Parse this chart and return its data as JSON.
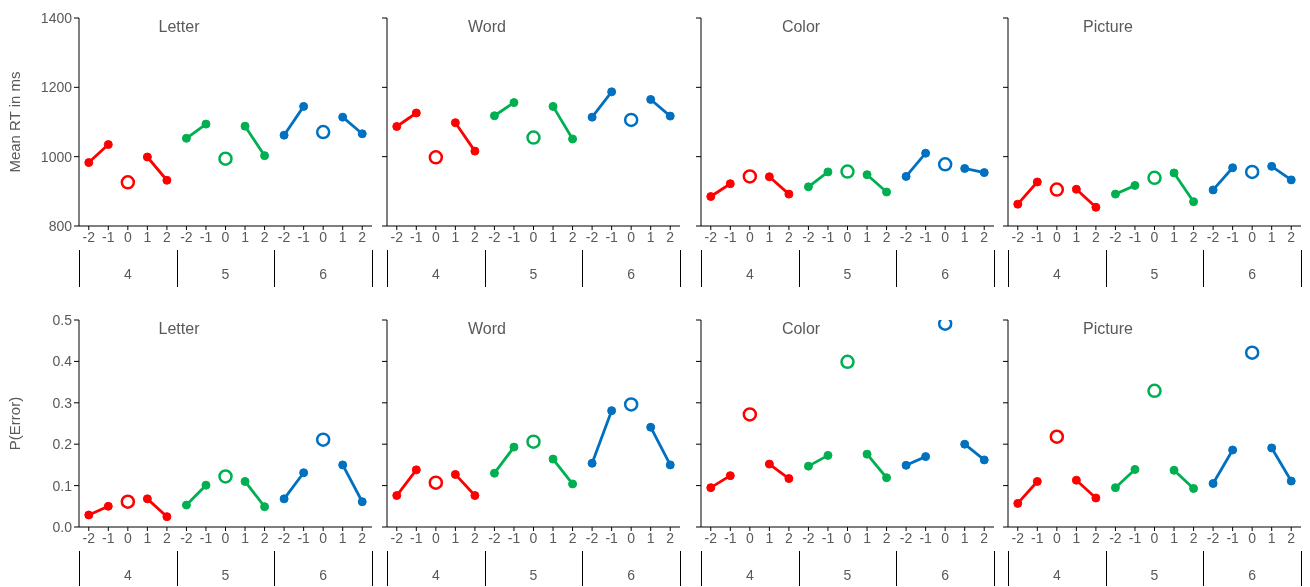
{
  "chart_data": [
    {
      "type": "line",
      "title": "Letter",
      "ylabel": "Mean RT in ms",
      "categories": [
        "-2",
        "-1",
        "0",
        "1",
        "2",
        "-2",
        "-1",
        "0",
        "1",
        "2",
        "-2",
        "-1",
        "0",
        "1",
        "2"
      ],
      "annotations": [
        "4",
        "5",
        "6"
      ],
      "ylim": [
        800,
        1400
      ],
      "yticks": [
        800,
        1000,
        1200,
        1400
      ],
      "marker": "circle",
      "series": [
        {
          "type": "line",
          "color": "#ff0000",
          "values": [
            983,
            1035,
            null,
            null,
            null,
            null,
            null,
            null,
            null,
            null,
            null,
            null,
            null,
            null,
            null
          ]
        },
        {
          "type": "scatter",
          "color": "#ff0000",
          "values": [
            null,
            null,
            926,
            null,
            null,
            null,
            null,
            null,
            null,
            null,
            null,
            null,
            null,
            null,
            null
          ]
        },
        {
          "type": "line",
          "color": "#ff0000",
          "values": [
            null,
            null,
            null,
            999,
            932,
            null,
            null,
            null,
            null,
            null,
            null,
            null,
            null,
            null,
            null
          ]
        },
        {
          "type": "line",
          "color": "#00b050",
          "values": [
            null,
            null,
            null,
            null,
            null,
            1053,
            1094,
            null,
            null,
            null,
            null,
            null,
            null,
            null,
            null
          ]
        },
        {
          "type": "scatter",
          "color": "#00b050",
          "values": [
            null,
            null,
            null,
            null,
            null,
            null,
            null,
            994,
            null,
            null,
            null,
            null,
            null,
            null,
            null
          ]
        },
        {
          "type": "line",
          "color": "#00b050",
          "values": [
            null,
            null,
            null,
            null,
            null,
            null,
            null,
            null,
            1088,
            1003,
            null,
            null,
            null,
            null,
            null
          ]
        },
        {
          "type": "line",
          "color": "#0070c0",
          "values": [
            null,
            null,
            null,
            null,
            null,
            null,
            null,
            null,
            null,
            null,
            1062,
            1145,
            null,
            null,
            null
          ]
        },
        {
          "type": "scatter",
          "color": "#0070c0",
          "values": [
            null,
            null,
            null,
            null,
            null,
            null,
            null,
            null,
            null,
            null,
            null,
            null,
            1071,
            null,
            null
          ]
        },
        {
          "type": "line",
          "color": "#0070c0",
          "values": [
            null,
            null,
            null,
            null,
            null,
            null,
            null,
            null,
            null,
            null,
            null,
            null,
            null,
            1114,
            1066
          ]
        }
      ]
    },
    {
      "type": "line",
      "title": "Word",
      "categories": [
        "-2",
        "-1",
        "0",
        "1",
        "2",
        "-2",
        "-1",
        "0",
        "1",
        "2",
        "-2",
        "-1",
        "0",
        "1",
        "2"
      ],
      "annotations": [
        "4",
        "5",
        "6"
      ],
      "ylim": [
        800,
        1400
      ],
      "yticks": [
        800,
        1000,
        1200,
        1400
      ],
      "marker": "circle",
      "tick_labels": "x",
      "series": [
        {
          "type": "line",
          "color": "#ff0000",
          "values": [
            1087,
            1126,
            null,
            null,
            null,
            null,
            null,
            null,
            null,
            null,
            null,
            null,
            null,
            null,
            null
          ]
        },
        {
          "type": "scatter",
          "color": "#ff0000",
          "values": [
            null,
            null,
            998,
            null,
            null,
            null,
            null,
            null,
            null,
            null,
            null,
            null,
            null,
            null,
            null
          ]
        },
        {
          "type": "line",
          "color": "#ff0000",
          "values": [
            null,
            null,
            null,
            1098,
            1016,
            null,
            null,
            null,
            null,
            null,
            null,
            null,
            null,
            null,
            null
          ]
        },
        {
          "type": "line",
          "color": "#00b050",
          "values": [
            null,
            null,
            null,
            null,
            null,
            1118,
            1156,
            null,
            null,
            null,
            null,
            null,
            null,
            null,
            null
          ]
        },
        {
          "type": "scatter",
          "color": "#00b050",
          "values": [
            null,
            null,
            null,
            null,
            null,
            null,
            null,
            1055,
            null,
            null,
            null,
            null,
            null,
            null,
            null
          ]
        },
        {
          "type": "line",
          "color": "#00b050",
          "values": [
            null,
            null,
            null,
            null,
            null,
            null,
            null,
            null,
            1145,
            1051,
            null,
            null,
            null,
            null,
            null
          ]
        },
        {
          "type": "line",
          "color": "#0070c0",
          "values": [
            null,
            null,
            null,
            null,
            null,
            null,
            null,
            null,
            null,
            null,
            1114,
            1187,
            null,
            null,
            null
          ]
        },
        {
          "type": "scatter",
          "color": "#0070c0",
          "values": [
            null,
            null,
            null,
            null,
            null,
            null,
            null,
            null,
            null,
            null,
            null,
            null,
            1106,
            null,
            null
          ]
        },
        {
          "type": "line",
          "color": "#0070c0",
          "values": [
            null,
            null,
            null,
            null,
            null,
            null,
            null,
            null,
            null,
            null,
            null,
            null,
            null,
            1165,
            1117
          ]
        }
      ]
    },
    {
      "type": "line",
      "title": "Color",
      "categories": [
        "-2",
        "-1",
        "0",
        "1",
        "2",
        "-2",
        "-1",
        "0",
        "1",
        "2",
        "-2",
        "-1",
        "0",
        "1",
        "2"
      ],
      "annotations": [
        "4",
        "5",
        "6"
      ],
      "ylim": [
        800,
        1400
      ],
      "yticks": [
        800,
        1000,
        1200,
        1400
      ],
      "marker": "circle",
      "tick_labels": "x",
      "series": [
        {
          "type": "line",
          "color": "#ff0000",
          "values": [
            885,
            922,
            null,
            null,
            null,
            null,
            null,
            null,
            null,
            null,
            null,
            null,
            null,
            null,
            null
          ]
        },
        {
          "type": "scatter",
          "color": "#ff0000",
          "values": [
            null,
            null,
            943,
            null,
            null,
            null,
            null,
            null,
            null,
            null,
            null,
            null,
            null,
            null,
            null
          ]
        },
        {
          "type": "line",
          "color": "#ff0000",
          "values": [
            null,
            null,
            null,
            942,
            892,
            null,
            null,
            null,
            null,
            null,
            null,
            null,
            null,
            null,
            null
          ]
        },
        {
          "type": "line",
          "color": "#00b050",
          "values": [
            null,
            null,
            null,
            null,
            null,
            913,
            956,
            null,
            null,
            null,
            null,
            null,
            null,
            null,
            null
          ]
        },
        {
          "type": "scatter",
          "color": "#00b050",
          "values": [
            null,
            null,
            null,
            null,
            null,
            null,
            null,
            957,
            null,
            null,
            null,
            null,
            null,
            null,
            null
          ]
        },
        {
          "type": "line",
          "color": "#00b050",
          "values": [
            null,
            null,
            null,
            null,
            null,
            null,
            null,
            null,
            948,
            898,
            null,
            null,
            null,
            null,
            null
          ]
        },
        {
          "type": "line",
          "color": "#0070c0",
          "values": [
            null,
            null,
            null,
            null,
            null,
            null,
            null,
            null,
            null,
            null,
            943,
            1010,
            null,
            null,
            null
          ]
        },
        {
          "type": "scatter",
          "color": "#0070c0",
          "values": [
            null,
            null,
            null,
            null,
            null,
            null,
            null,
            null,
            null,
            null,
            null,
            null,
            978,
            null,
            null
          ]
        },
        {
          "type": "line",
          "color": "#0070c0",
          "values": [
            null,
            null,
            null,
            null,
            null,
            null,
            null,
            null,
            null,
            null,
            null,
            null,
            null,
            966,
            954
          ]
        }
      ]
    },
    {
      "type": "line",
      "title": "Picture",
      "categories": [
        "-2",
        "-1",
        "0",
        "1",
        "2",
        "-2",
        "-1",
        "0",
        "1",
        "2",
        "-2",
        "-1",
        "0",
        "1",
        "2"
      ],
      "annotations": [
        "4",
        "5",
        "6"
      ],
      "ylim": [
        800,
        1400
      ],
      "yticks": [
        800,
        1000,
        1200,
        1400
      ],
      "marker": "circle",
      "tick_labels": "x",
      "series": [
        {
          "type": "line",
          "color": "#ff0000",
          "values": [
            863,
            927,
            null,
            null,
            null,
            null,
            null,
            null,
            null,
            null,
            null,
            null,
            null,
            null,
            null
          ]
        },
        {
          "type": "scatter",
          "color": "#ff0000",
          "values": [
            null,
            null,
            905,
            null,
            null,
            null,
            null,
            null,
            null,
            null,
            null,
            null,
            null,
            null,
            null
          ]
        },
        {
          "type": "line",
          "color": "#ff0000",
          "values": [
            null,
            null,
            null,
            906,
            854,
            null,
            null,
            null,
            null,
            null,
            null,
            null,
            null,
            null,
            null
          ]
        },
        {
          "type": "line",
          "color": "#00b050",
          "values": [
            null,
            null,
            null,
            null,
            null,
            892,
            917,
            null,
            null,
            null,
            null,
            null,
            null,
            null,
            null
          ]
        },
        {
          "type": "scatter",
          "color": "#00b050",
          "values": [
            null,
            null,
            null,
            null,
            null,
            null,
            null,
            939,
            null,
            null,
            null,
            null,
            null,
            null,
            null
          ]
        },
        {
          "type": "line",
          "color": "#00b050",
          "values": [
            null,
            null,
            null,
            null,
            null,
            null,
            null,
            null,
            953,
            870,
            null,
            null,
            null,
            null,
            null
          ]
        },
        {
          "type": "line",
          "color": "#0070c0",
          "values": [
            null,
            null,
            null,
            null,
            null,
            null,
            null,
            null,
            null,
            null,
            904,
            968,
            null,
            null,
            null
          ]
        },
        {
          "type": "scatter",
          "color": "#0070c0",
          "values": [
            null,
            null,
            null,
            null,
            null,
            null,
            null,
            null,
            null,
            null,
            null,
            null,
            956,
            null,
            null
          ]
        },
        {
          "type": "line",
          "color": "#0070c0",
          "values": [
            null,
            null,
            null,
            null,
            null,
            null,
            null,
            null,
            null,
            null,
            null,
            null,
            null,
            972,
            933
          ]
        }
      ]
    },
    {
      "type": "line",
      "title": "Letter",
      "ylabel": "P(Error)",
      "categories": [
        "-2",
        "-1",
        "0",
        "1",
        "2",
        "-2",
        "-1",
        "0",
        "1",
        "2",
        "-2",
        "-1",
        "0",
        "1",
        "2"
      ],
      "annotations": [
        "4",
        "5",
        "6"
      ],
      "ylim": [
        0,
        0.5
      ],
      "yticks": [
        {
          "value": 0,
          "label": "0.0"
        },
        0.1,
        0.2,
        0.3,
        0.4,
        0.5
      ],
      "marker": "circle",
      "series": [
        {
          "type": "line",
          "color": "#ff0000",
          "values": [
            0.029,
            0.05,
            null,
            null,
            null,
            null,
            null,
            null,
            null,
            null,
            null,
            null,
            null,
            null,
            null
          ]
        },
        {
          "type": "scatter",
          "color": "#ff0000",
          "values": [
            null,
            null,
            0.061,
            null,
            null,
            null,
            null,
            null,
            null,
            null,
            null,
            null,
            null,
            null,
            null
          ]
        },
        {
          "type": "line",
          "color": "#ff0000",
          "values": [
            null,
            null,
            null,
            0.068,
            0.025,
            null,
            null,
            null,
            null,
            null,
            null,
            null,
            null,
            null,
            null
          ]
        },
        {
          "type": "line",
          "color": "#00b050",
          "values": [
            null,
            null,
            null,
            null,
            null,
            0.053,
            0.101,
            null,
            null,
            null,
            null,
            null,
            null,
            null,
            null
          ]
        },
        {
          "type": "scatter",
          "color": "#00b050",
          "values": [
            null,
            null,
            null,
            null,
            null,
            null,
            null,
            0.122,
            null,
            null,
            null,
            null,
            null,
            null,
            null
          ]
        },
        {
          "type": "line",
          "color": "#00b050",
          "values": [
            null,
            null,
            null,
            null,
            null,
            null,
            null,
            null,
            0.11,
            0.049,
            null,
            null,
            null,
            null,
            null
          ]
        },
        {
          "type": "line",
          "color": "#0070c0",
          "values": [
            null,
            null,
            null,
            null,
            null,
            null,
            null,
            null,
            null,
            null,
            0.068,
            0.131,
            null,
            null,
            null
          ]
        },
        {
          "type": "scatter",
          "color": "#0070c0",
          "values": [
            null,
            null,
            null,
            null,
            null,
            null,
            null,
            null,
            null,
            null,
            null,
            null,
            0.211,
            null,
            null
          ]
        },
        {
          "type": "line",
          "color": "#0070c0",
          "values": [
            null,
            null,
            null,
            null,
            null,
            null,
            null,
            null,
            null,
            null,
            null,
            null,
            null,
            0.15,
            0.061
          ]
        }
      ]
    },
    {
      "type": "line",
      "title": "Word",
      "categories": [
        "-2",
        "-1",
        "0",
        "1",
        "2",
        "-2",
        "-1",
        "0",
        "1",
        "2",
        "-2",
        "-1",
        "0",
        "1",
        "2"
      ],
      "annotations": [
        "4",
        "5",
        "6"
      ],
      "ylim": [
        0,
        0.5
      ],
      "yticks": [
        0,
        0.1,
        0.2,
        0.3,
        0.4,
        0.5
      ],
      "marker": "circle",
      "tick_labels": "x",
      "series": [
        {
          "type": "line",
          "color": "#ff0000",
          "values": [
            0.076,
            0.138,
            null,
            null,
            null,
            null,
            null,
            null,
            null,
            null,
            null,
            null,
            null,
            null,
            null
          ]
        },
        {
          "type": "scatter",
          "color": "#ff0000",
          "values": [
            null,
            null,
            0.107,
            null,
            null,
            null,
            null,
            null,
            null,
            null,
            null,
            null,
            null,
            null,
            null
          ]
        },
        {
          "type": "line",
          "color": "#ff0000",
          "values": [
            null,
            null,
            null,
            0.127,
            0.076,
            null,
            null,
            null,
            null,
            null,
            null,
            null,
            null,
            null,
            null
          ]
        },
        {
          "type": "line",
          "color": "#00b050",
          "values": [
            null,
            null,
            null,
            null,
            null,
            0.13,
            0.193,
            null,
            null,
            null,
            null,
            null,
            null,
            null,
            null
          ]
        },
        {
          "type": "scatter",
          "color": "#00b050",
          "values": [
            null,
            null,
            null,
            null,
            null,
            null,
            null,
            0.206,
            null,
            null,
            null,
            null,
            null,
            null,
            null
          ]
        },
        {
          "type": "line",
          "color": "#00b050",
          "values": [
            null,
            null,
            null,
            null,
            null,
            null,
            null,
            null,
            0.164,
            0.104,
            null,
            null,
            null,
            null,
            null
          ]
        },
        {
          "type": "line",
          "color": "#0070c0",
          "values": [
            null,
            null,
            null,
            null,
            null,
            null,
            null,
            null,
            null,
            null,
            0.154,
            0.281,
            null,
            null,
            null
          ]
        },
        {
          "type": "scatter",
          "color": "#0070c0",
          "values": [
            null,
            null,
            null,
            null,
            null,
            null,
            null,
            null,
            null,
            null,
            null,
            null,
            0.296,
            null,
            null
          ]
        },
        {
          "type": "line",
          "color": "#0070c0",
          "values": [
            null,
            null,
            null,
            null,
            null,
            null,
            null,
            null,
            null,
            null,
            null,
            null,
            null,
            0.241,
            0.15
          ]
        }
      ]
    },
    {
      "type": "line",
      "title": "Color",
      "categories": [
        "-2",
        "-1",
        "0",
        "1",
        "2",
        "-2",
        "-1",
        "0",
        "1",
        "2",
        "-2",
        "-1",
        "0",
        "1",
        "2"
      ],
      "annotations": [
        "4",
        "5",
        "6"
      ],
      "ylim": [
        0,
        0.5
      ],
      "yticks": [
        0,
        0.1,
        0.2,
        0.3,
        0.4,
        0.5
      ],
      "marker": "circle",
      "tick_labels": "x",
      "series": [
        {
          "type": "line",
          "color": "#ff0000",
          "values": [
            0.095,
            0.124,
            null,
            null,
            null,
            null,
            null,
            null,
            null,
            null,
            null,
            null,
            null,
            null,
            null
          ]
        },
        {
          "type": "scatter",
          "color": "#ff0000",
          "values": [
            null,
            null,
            0.272,
            null,
            null,
            null,
            null,
            null,
            null,
            null,
            null,
            null,
            null,
            null,
            null
          ]
        },
        {
          "type": "line",
          "color": "#ff0000",
          "values": [
            null,
            null,
            null,
            0.152,
            0.117,
            null,
            null,
            null,
            null,
            null,
            null,
            null,
            null,
            null,
            null
          ]
        },
        {
          "type": "line",
          "color": "#00b050",
          "values": [
            null,
            null,
            null,
            null,
            null,
            0.147,
            0.173,
            null,
            null,
            null,
            null,
            null,
            null,
            null,
            null
          ]
        },
        {
          "type": "scatter",
          "color": "#00b050",
          "values": [
            null,
            null,
            null,
            null,
            null,
            null,
            null,
            0.399,
            null,
            null,
            null,
            null,
            null,
            null,
            null
          ]
        },
        {
          "type": "line",
          "color": "#00b050",
          "values": [
            null,
            null,
            null,
            null,
            null,
            null,
            null,
            null,
            0.176,
            0.119,
            null,
            null,
            null,
            null,
            null
          ]
        },
        {
          "type": "line",
          "color": "#0070c0",
          "values": [
            null,
            null,
            null,
            null,
            null,
            null,
            null,
            null,
            null,
            null,
            0.149,
            0.17,
            null,
            null,
            null
          ]
        },
        {
          "type": "scatter",
          "color": "#0070c0",
          "values": [
            null,
            null,
            null,
            null,
            null,
            null,
            null,
            null,
            null,
            null,
            null,
            null,
            0.491,
            null,
            null
          ]
        },
        {
          "type": "line",
          "color": "#0070c0",
          "values": [
            null,
            null,
            null,
            null,
            null,
            null,
            null,
            null,
            null,
            null,
            null,
            null,
            null,
            0.2,
            0.162
          ]
        }
      ]
    },
    {
      "type": "line",
      "title": "Picture",
      "categories": [
        "-2",
        "-1",
        "0",
        "1",
        "2",
        "-2",
        "-1",
        "0",
        "1",
        "2",
        "-2",
        "-1",
        "0",
        "1",
        "2"
      ],
      "annotations": [
        "4",
        "5",
        "6"
      ],
      "ylim": [
        0,
        0.5
      ],
      "yticks": [
        0,
        0.1,
        0.2,
        0.3,
        0.4,
        0.5
      ],
      "marker": "circle",
      "tick_labels": "x",
      "series": [
        {
          "type": "line",
          "color": "#ff0000",
          "values": [
            0.057,
            0.11,
            null,
            null,
            null,
            null,
            null,
            null,
            null,
            null,
            null,
            null,
            null,
            null,
            null
          ]
        },
        {
          "type": "scatter",
          "color": "#ff0000",
          "values": [
            null,
            null,
            0.218,
            null,
            null,
            null,
            null,
            null,
            null,
            null,
            null,
            null,
            null,
            null,
            null
          ]
        },
        {
          "type": "line",
          "color": "#ff0000",
          "values": [
            null,
            null,
            null,
            0.113,
            0.07,
            null,
            null,
            null,
            null,
            null,
            null,
            null,
            null,
            null,
            null
          ]
        },
        {
          "type": "line",
          "color": "#00b050",
          "values": [
            null,
            null,
            null,
            null,
            null,
            0.095,
            0.139,
            null,
            null,
            null,
            null,
            null,
            null,
            null,
            null
          ]
        },
        {
          "type": "scatter",
          "color": "#00b050",
          "values": [
            null,
            null,
            null,
            null,
            null,
            null,
            null,
            0.329,
            null,
            null,
            null,
            null,
            null,
            null,
            null
          ]
        },
        {
          "type": "line",
          "color": "#00b050",
          "values": [
            null,
            null,
            null,
            null,
            null,
            null,
            null,
            null,
            0.137,
            0.093,
            null,
            null,
            null,
            null,
            null
          ]
        },
        {
          "type": "line",
          "color": "#0070c0",
          "values": [
            null,
            null,
            null,
            null,
            null,
            null,
            null,
            null,
            null,
            null,
            0.105,
            0.186,
            null,
            null,
            null
          ]
        },
        {
          "type": "scatter",
          "color": "#0070c0",
          "values": [
            null,
            null,
            null,
            null,
            null,
            null,
            null,
            null,
            null,
            null,
            null,
            null,
            0.421,
            null,
            null
          ]
        },
        {
          "type": "line",
          "color": "#0070c0",
          "values": [
            null,
            null,
            null,
            null,
            null,
            null,
            null,
            null,
            null,
            null,
            null,
            null,
            null,
            0.191,
            0.111
          ]
        }
      ]
    }
  ]
}
